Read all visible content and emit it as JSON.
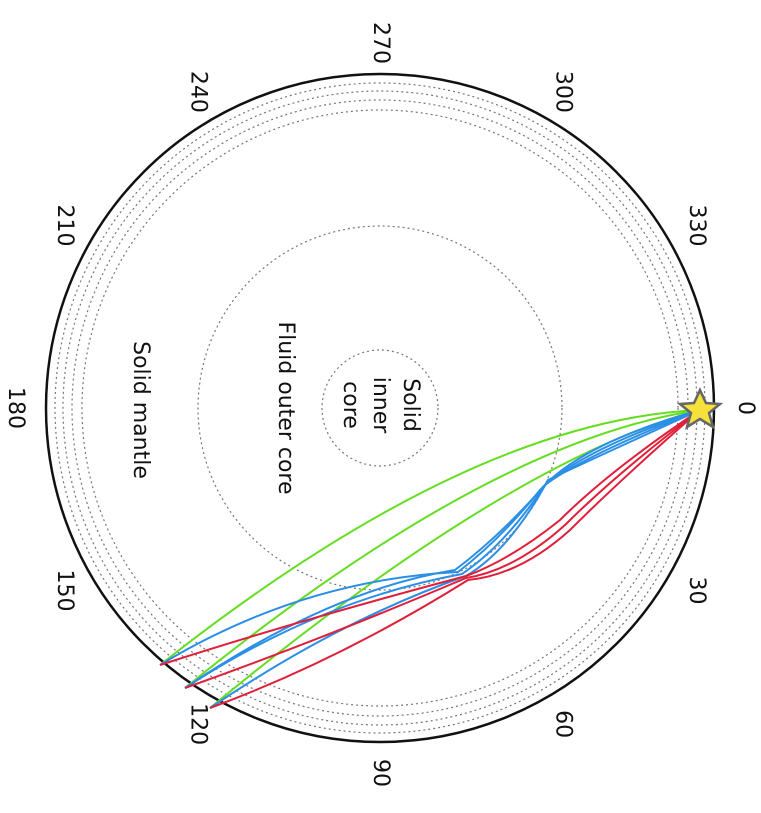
{
  "angle_labels": [
    "0",
    "30",
    "60",
    "90",
    "120",
    "150",
    "180",
    "210",
    "240",
    "270",
    "300",
    "330"
  ],
  "regions": {
    "inner_core": [
      "Solid",
      "inner",
      "core"
    ],
    "outer_core": "Fluid outer core",
    "mantle": "Solid mantle"
  }
}
